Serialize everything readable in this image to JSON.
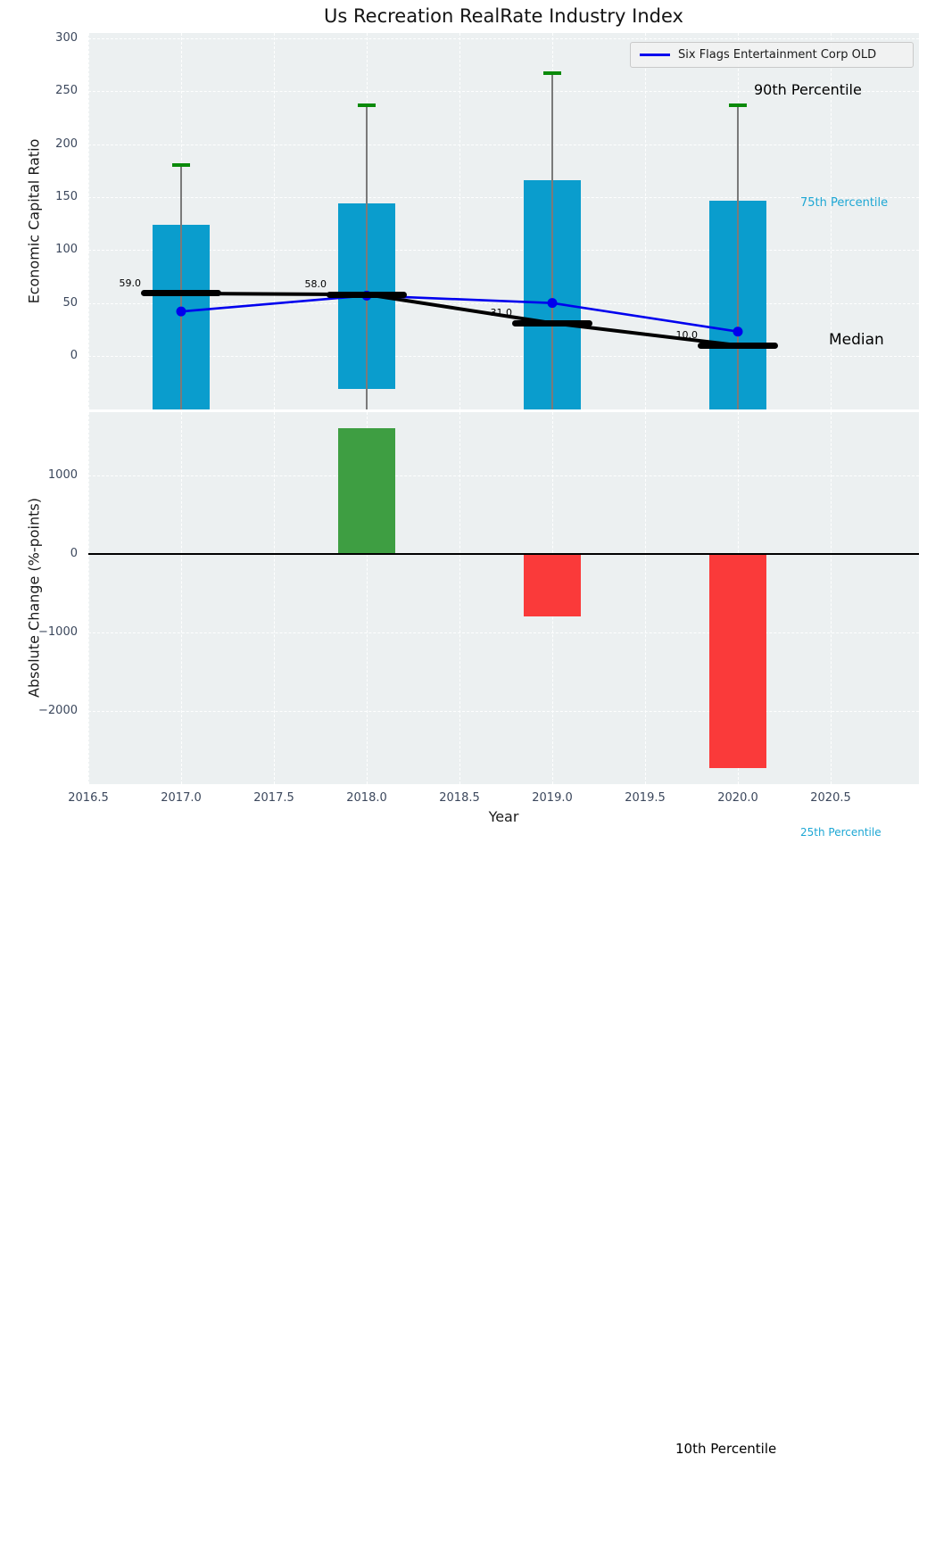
{
  "figure": {
    "title": "Us Recreation RealRate Industry Index",
    "background": "#ffffff",
    "plot_background": "#ecf0f1"
  },
  "legend": {
    "label": "Six Flags Entertainment Corp OLD",
    "line_color": "#0000ee",
    "position": "upper right"
  },
  "percentile_labels": {
    "p90": "90th Percentile",
    "p75": "75th Percentile",
    "median": "Median",
    "p25": "25th Percentile",
    "p10": "10th Percentile"
  },
  "colors": {
    "bar_cyan": "#0a9dcd",
    "cap_green": "#0a8a0a",
    "bar_green": "#3e9e42",
    "bar_red": "#fa3a3a",
    "line_blue": "#0000ee",
    "median_black": "#000000",
    "whisker_gray": "#7a7a7a",
    "tick_text": "#3b475c",
    "cyan_label": "#1ea7d4"
  },
  "chart_data": [
    {
      "type": "boxbar+line",
      "title": "Us Recreation RealRate Industry Index",
      "ylabel": "Economic Capital Ratio",
      "years": [
        2017,
        2018,
        2019,
        2020
      ],
      "p90_whisker_top": [
        180,
        237,
        267,
        237
      ],
      "p75_bar_top": [
        124,
        144,
        166,
        147
      ],
      "median": [
        59,
        58,
        31,
        10
      ],
      "median_labels": [
        "59.0",
        "58.0",
        "31.0",
        "10.0"
      ],
      "p25_bar_bottom": [
        null,
        -31,
        null,
        null
      ],
      "p25_clipped_below_axis": [
        true,
        false,
        true,
        true
      ],
      "series": [
        {
          "name": "Six Flags Entertainment Corp OLD",
          "values": [
            42,
            57,
            50,
            23
          ],
          "color": "#0000ee"
        }
      ],
      "ylim": [
        -50,
        305
      ],
      "ytick_values": [
        0,
        50,
        100,
        150,
        200,
        250,
        300
      ],
      "ytick_labels": [
        "0",
        "50",
        "100",
        "150",
        "200",
        "250",
        "300"
      ],
      "grid": true,
      "legend_position": "upper right"
    },
    {
      "type": "bar",
      "ylabel": "Absolute Change (%-points)",
      "xlabel": "Year",
      "years": [
        2018,
        2019,
        2020
      ],
      "values": [
        1600,
        -800,
        -2730
      ],
      "bar_colors": [
        "#3e9e42",
        "#fa3a3a",
        "#fa3a3a"
      ],
      "ylim": [
        -2930,
        1810
      ],
      "ytick_values": [
        1000,
        0,
        -1000,
        -2000
      ],
      "ytick_labels": [
        "1000",
        "0",
        "−1000",
        "−2000"
      ],
      "xtick_values": [
        2016.5,
        2017.0,
        2017.5,
        2018.0,
        2018.5,
        2019.0,
        2019.5,
        2020.0,
        2020.5
      ],
      "xtick_labels": [
        "2016.5",
        "2017.0",
        "2017.5",
        "2018.0",
        "2018.5",
        "2019.0",
        "2019.5",
        "2020.0",
        "2020.5"
      ],
      "zero_line": true,
      "grid": true
    }
  ]
}
